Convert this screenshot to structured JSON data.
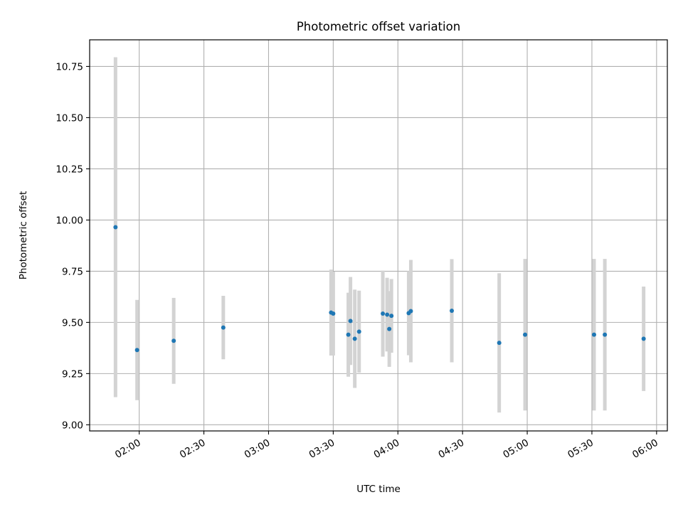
{
  "chart_data": {
    "type": "scatter",
    "title": "Photometric offset variation",
    "xlabel": "UTC time",
    "ylabel": "Photometric offset",
    "x_unit": "UTC time (HH:MM)",
    "xlim": [
      "01:37",
      "06:05"
    ],
    "ylim": [
      8.97,
      10.88
    ],
    "x_ticks": [
      "02:00",
      "02:30",
      "03:00",
      "03:30",
      "04:00",
      "04:30",
      "05:00",
      "05:30",
      "06:00"
    ],
    "y_ticks": [
      "9.00",
      "9.25",
      "9.50",
      "9.75",
      "10.00",
      "10.25",
      "10.50",
      "10.75"
    ],
    "grid": true,
    "point_color": "#1f77b4",
    "errorbar_color": "#d3d3d3",
    "points": [
      {
        "x": "01:49",
        "y": 9.965,
        "err": 0.83
      },
      {
        "x": "01:59",
        "y": 9.365,
        "err": 0.245
      },
      {
        "x": "02:16",
        "y": 9.41,
        "err": 0.21
      },
      {
        "x": "02:39",
        "y": 9.475,
        "err": 0.155
      },
      {
        "x": "03:29",
        "y": 9.548,
        "err": 0.21
      },
      {
        "x": "03:30",
        "y": 9.543,
        "err": 0.205
      },
      {
        "x": "03:37",
        "y": 9.44,
        "err": 0.205
      },
      {
        "x": "03:38",
        "y": 9.507,
        "err": 0.215
      },
      {
        "x": "03:40",
        "y": 9.42,
        "err": 0.24
      },
      {
        "x": "03:42",
        "y": 9.455,
        "err": 0.2
      },
      {
        "x": "03:53",
        "y": 9.543,
        "err": 0.21
      },
      {
        "x": "03:55",
        "y": 9.538,
        "err": 0.18
      },
      {
        "x": "03:56",
        "y": 9.468,
        "err": 0.185
      },
      {
        "x": "03:57",
        "y": 9.532,
        "err": 0.18
      },
      {
        "x": "04:05",
        "y": 9.545,
        "err": 0.205
      },
      {
        "x": "04:06",
        "y": 9.555,
        "err": 0.25
      },
      {
        "x": "04:25",
        "y": 9.557,
        "err": 0.252
      },
      {
        "x": "04:47",
        "y": 9.4,
        "err": 0.34
      },
      {
        "x": "04:59",
        "y": 9.44,
        "err": 0.37
      },
      {
        "x": "05:31",
        "y": 9.44,
        "err": 0.37
      },
      {
        "x": "05:36",
        "y": 9.44,
        "err": 0.37
      },
      {
        "x": "05:54",
        "y": 9.42,
        "err": 0.255
      }
    ]
  }
}
